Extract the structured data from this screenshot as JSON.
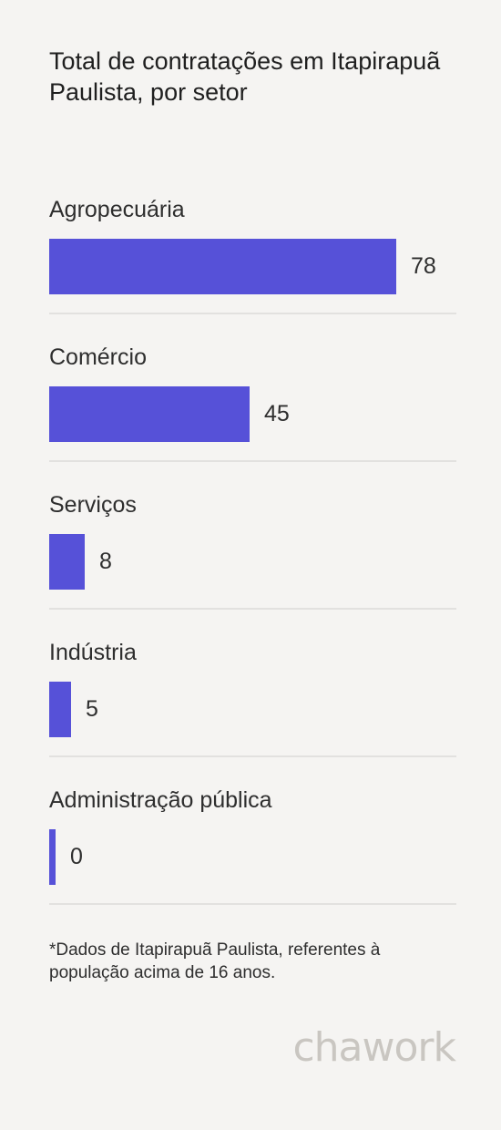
{
  "chart_data": {
    "type": "bar",
    "orientation": "horizontal",
    "title": "Total de contratações em Itapirapuã Paulista, por setor",
    "categories": [
      "Agropecuária",
      "Comércio",
      "Serviços",
      "Indústria",
      "Administração pública"
    ],
    "values": [
      78,
      45,
      8,
      5,
      0
    ],
    "value_labels": [
      "78",
      "45",
      "8",
      "5",
      "0"
    ],
    "xlim": [
      0,
      78
    ],
    "grid": false,
    "legend": "none",
    "bar_color": "#5651d8"
  },
  "footnote": "*Dados de Itapirapuã Paulista, referentes à população acima de 16 anos.",
  "brand": {
    "logo_text": "chawork",
    "logo_color": "#c9c6c1"
  }
}
